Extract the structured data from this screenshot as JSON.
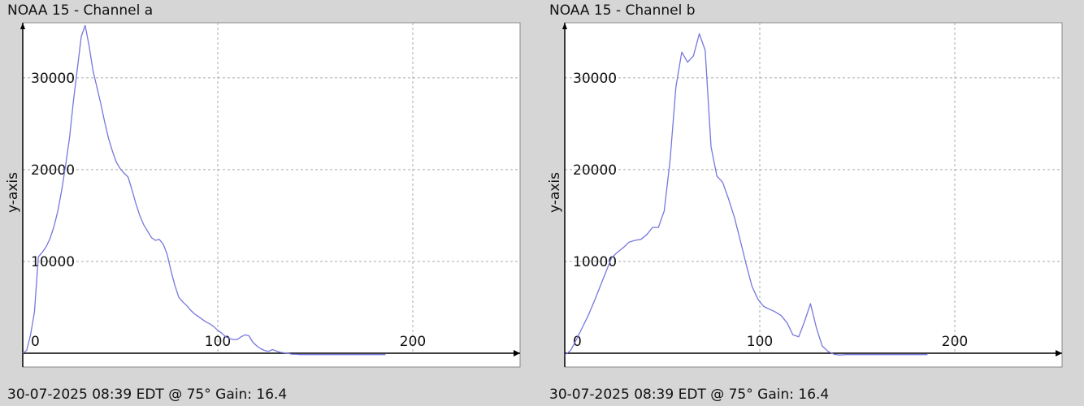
{
  "colors": {
    "background": "#d6d6d6",
    "plot_area": "#ffffff",
    "line": "#7777dd",
    "grid": "#aaaaaa",
    "axis": "#000000"
  },
  "chart_data": [
    {
      "type": "line",
      "title": "NOAA 15 - Channel a",
      "footer": "30-07-2025 08:39 EDT @ 75° Gain: 16.4",
      "ylabel": "y-axis",
      "xlabel": "",
      "xlim": [
        0,
        255
      ],
      "ylim": [
        -1500,
        36000
      ],
      "xticks": [
        0,
        100,
        200
      ],
      "yticks": [
        10000,
        20000,
        30000
      ],
      "grid": true,
      "series": [
        {
          "x": [
            0,
            2,
            4,
            6,
            8,
            10,
            12,
            14,
            16,
            18,
            20,
            22,
            24,
            26,
            28,
            30,
            32,
            34,
            36,
            38,
            40,
            42,
            44,
            46,
            48,
            50,
            52,
            54,
            56,
            58,
            60,
            62,
            64,
            66,
            68,
            70,
            72,
            74,
            76,
            78,
            80,
            82,
            84,
            86,
            88,
            90,
            92,
            94,
            96,
            98,
            100,
            102,
            104,
            106,
            108,
            110,
            112,
            114,
            116,
            118,
            120,
            122,
            124,
            126,
            128,
            130,
            132,
            134,
            136,
            138,
            140,
            142,
            144,
            146,
            148,
            150,
            152,
            154,
            156,
            158,
            160,
            162,
            164,
            166,
            168,
            170,
            172,
            174,
            176,
            178,
            180,
            182,
            184,
            186
          ],
          "y": [
            0,
            300,
            2000,
            4500,
            10500,
            11000,
            11600,
            12500,
            13800,
            15500,
            17800,
            20500,
            23500,
            27500,
            31000,
            34500,
            35700,
            33500,
            30800,
            29000,
            27200,
            25200,
            23400,
            22000,
            20800,
            20100,
            19600,
            19200,
            17800,
            16300,
            15000,
            14000,
            13300,
            12600,
            12300,
            12400,
            11900,
            10800,
            9000,
            7400,
            6100,
            5600,
            5200,
            4700,
            4300,
            4000,
            3700,
            3400,
            3200,
            2900,
            2500,
            2200,
            1800,
            1600,
            1500,
            1500,
            1800,
            2000,
            1900,
            1200,
            800,
            500,
            300,
            200,
            400,
            250,
            100,
            50,
            0,
            -100,
            -100,
            -150,
            -150,
            -150,
            -150,
            -150,
            -150,
            -150,
            -150,
            -150,
            -150,
            -150,
            -150,
            -150,
            -150,
            -150,
            -150,
            -150,
            -150,
            -150,
            -150,
            -150,
            -150,
            -150
          ]
        }
      ]
    },
    {
      "type": "line",
      "title": "NOAA 15 - Channel b",
      "footer": "30-07-2025 08:39 EDT @ 75° Gain: 16.4",
      "ylabel": "y-axis",
      "xlabel": "",
      "xlim": [
        0,
        255
      ],
      "ylim": [
        -1500,
        36000
      ],
      "xticks": [
        0,
        100,
        200
      ],
      "yticks": [
        10000,
        20000,
        30000
      ],
      "grid": true,
      "series": [
        {
          "x": [
            0,
            3,
            6,
            9,
            12,
            15,
            18,
            21,
            24,
            27,
            30,
            33,
            36,
            39,
            42,
            45,
            48,
            51,
            54,
            57,
            60,
            63,
            66,
            69,
            72,
            75,
            78,
            81,
            84,
            87,
            90,
            93,
            96,
            99,
            102,
            105,
            108,
            111,
            114,
            117,
            120,
            123,
            126,
            129,
            132,
            135,
            138,
            141,
            144,
            147,
            150,
            153,
            155,
            157,
            159,
            162,
            165,
            168,
            171,
            174,
            177,
            180,
            183,
            186
          ],
          "y": [
            -200,
            300,
            1500,
            2800,
            4100,
            5600,
            7200,
            8800,
            10400,
            11000,
            11500,
            12100,
            12300,
            12400,
            12900,
            13700,
            13700,
            15500,
            21000,
            29000,
            32800,
            31700,
            32400,
            34800,
            33000,
            22500,
            19300,
            18600,
            16800,
            14800,
            12300,
            9700,
            7300,
            5900,
            5100,
            4800,
            4500,
            4100,
            3300,
            2000,
            1800,
            3500,
            5400,
            2800,
            800,
            200,
            -100,
            -200,
            -150,
            -150,
            -150,
            -150,
            -150,
            -150,
            -150,
            -150,
            -150,
            -150,
            -150,
            -150,
            -150,
            -150,
            -150,
            -150
          ]
        }
      ]
    }
  ]
}
